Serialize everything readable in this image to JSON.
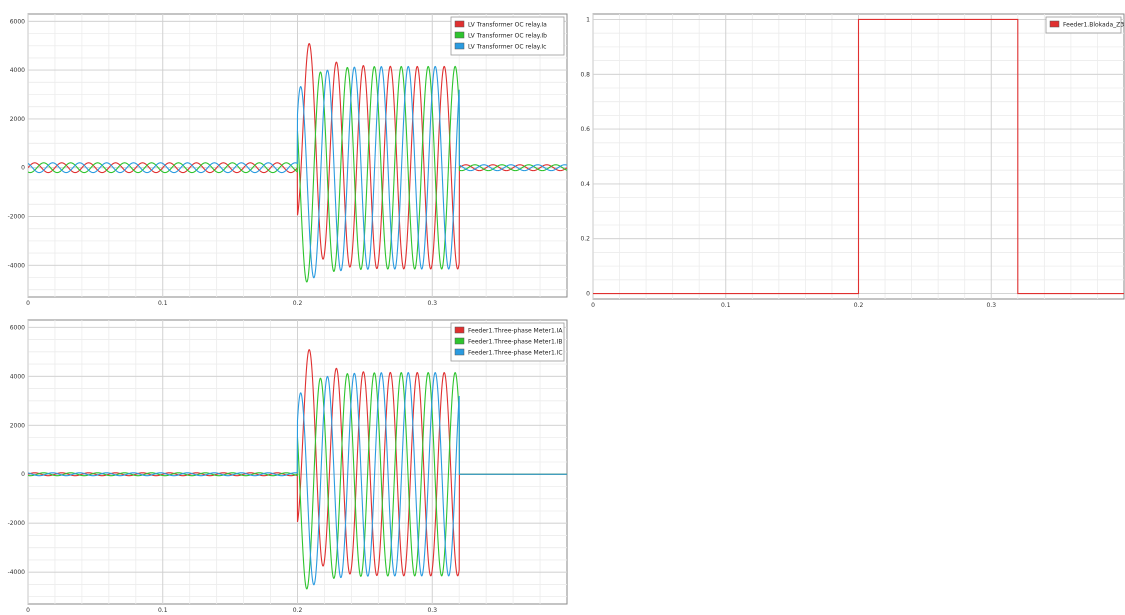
{
  "chart_data": [
    {
      "id": "chart-lv-oc-relay",
      "type": "line",
      "title": "",
      "xlabel": "",
      "ylabel": "",
      "xlim": [
        0,
        0.4
      ],
      "ylim": [
        -5300,
        6300
      ],
      "grid": true,
      "legend_position": "top-right",
      "x_ticks": [
        0,
        0.1,
        0.2,
        0.3
      ],
      "x_tick_labels": [
        "0",
        "0.1",
        "0.2",
        "0.3"
      ],
      "y_ticks": [
        -4000,
        -2000,
        0,
        2000,
        4000,
        6000
      ],
      "y_tick_labels": [
        "-4000",
        "-2000",
        "0",
        "2000",
        "4000",
        "6000"
      ],
      "signal": {
        "frequency_hz": 50,
        "pre_fault_amplitude": 200,
        "fault_start": 0.2,
        "fault_end": 0.32,
        "fault_steady_amplitude": 4150,
        "fault_peak": 6100,
        "fault_min": -5100,
        "post_fault_amplitude": 120
      },
      "series": [
        {
          "name": "LV Transformer OC relay.Ia",
          "color": "#e03030",
          "phase_deg": 0
        },
        {
          "name": "LV Transformer OC relay.Ib",
          "color": "#2ec42e",
          "phase_deg": -120
        },
        {
          "name": "LV Transformer OC relay.Ic",
          "color": "#2a9be0",
          "phase_deg": 120
        }
      ]
    },
    {
      "id": "chart-feeder1-blokada",
      "type": "line",
      "title": "",
      "xlabel": "",
      "ylabel": "",
      "xlim": [
        0,
        0.4
      ],
      "ylim": [
        -0.02,
        1.02
      ],
      "grid": true,
      "legend_position": "top-right",
      "x_ticks": [
        0,
        0.1,
        0.2,
        0.3
      ],
      "x_tick_labels": [
        "0",
        "0.1",
        "0.2",
        "0.3"
      ],
      "y_ticks": [
        0,
        0.2,
        0.4,
        0.6,
        0.8,
        1
      ],
      "y_tick_labels": [
        "0",
        "0.2",
        "0.4",
        "0.6",
        "0.8",
        "1"
      ],
      "series": [
        {
          "name": "Feeder1.Blokada_Z3",
          "color": "#e03030",
          "x": [
            0,
            0.2,
            0.2,
            0.32,
            0.32,
            0.4
          ],
          "y": [
            0,
            0,
            1,
            1,
            0,
            0
          ]
        }
      ]
    },
    {
      "id": "chart-feeder1-meter",
      "type": "line",
      "title": "",
      "xlabel": "",
      "ylabel": "",
      "xlim": [
        0,
        0.4
      ],
      "ylim": [
        -5300,
        6300
      ],
      "grid": true,
      "legend_position": "top-right",
      "x_ticks": [
        0,
        0.1,
        0.2,
        0.3
      ],
      "x_tick_labels": [
        "0",
        "0.1",
        "0.2",
        "0.3"
      ],
      "y_ticks": [
        -4000,
        -2000,
        0,
        2000,
        4000,
        6000
      ],
      "y_tick_labels": [
        "-4000",
        "-2000",
        "0",
        "2000",
        "4000",
        "6000"
      ],
      "signal": {
        "frequency_hz": 50,
        "pre_fault_amplitude": 60,
        "fault_start": 0.2,
        "fault_end": 0.32,
        "fault_steady_amplitude": 4150,
        "fault_peak": 6100,
        "fault_min": -5100,
        "post_fault_amplitude": 0
      },
      "series": [
        {
          "name": "Feeder1.Three-phase Meter1.IA",
          "color": "#e03030",
          "phase_deg": 0
        },
        {
          "name": "Feeder1.Three-phase Meter1.IB",
          "color": "#2ec42e",
          "phase_deg": -120
        },
        {
          "name": "Feeder1.Three-phase Meter1.IC",
          "color": "#2a9be0",
          "phase_deg": 120
        }
      ]
    }
  ]
}
